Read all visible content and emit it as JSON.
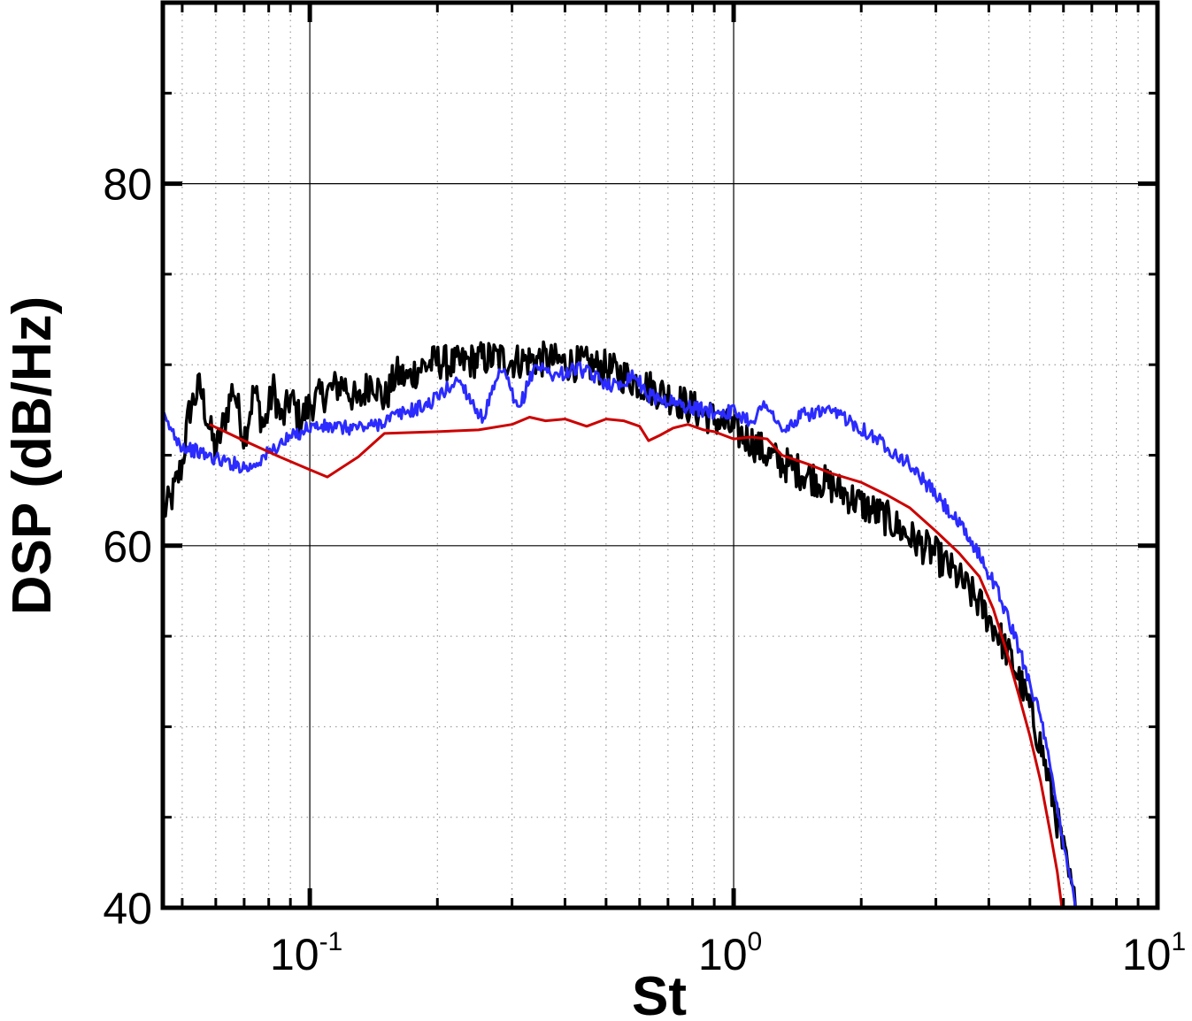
{
  "chart_data": {
    "type": "line",
    "title": "",
    "xlabel": "St",
    "ylabel": "DSP (dB/Hz)",
    "xscale": "log",
    "xlim": [
      0.045,
      10
    ],
    "ylim": [
      40,
      90
    ],
    "grid": true,
    "legend": "none",
    "x_ticks": [
      {
        "base": "10",
        "exp": "-1",
        "value": 0.1
      },
      {
        "base": "10",
        "exp": "0",
        "value": 1
      },
      {
        "base": "10",
        "exp": "1",
        "value": 10
      }
    ],
    "y_ticks": [
      {
        "label": "40",
        "value": 40
      },
      {
        "label": "60",
        "value": 60
      },
      {
        "label": "80",
        "value": 80
      }
    ],
    "series": [
      {
        "color": "#000000",
        "noise": 1.0,
        "x": [
          0.045,
          0.047,
          0.05,
          0.052,
          0.055,
          0.058,
          0.06,
          0.063,
          0.066,
          0.07,
          0.074,
          0.078,
          0.082,
          0.086,
          0.09,
          0.095,
          0.1,
          0.11,
          0.12,
          0.13,
          0.14,
          0.15,
          0.16,
          0.17,
          0.18,
          0.2,
          0.22,
          0.25,
          0.28,
          0.3,
          0.35,
          0.4,
          0.45,
          0.5,
          0.55,
          0.6,
          0.7,
          0.8,
          0.9,
          1.0,
          1.1,
          1.2,
          1.4,
          1.6,
          1.8,
          2.0,
          2.3,
          2.6,
          3.0,
          3.4,
          3.8,
          4.2,
          4.6,
          5.0,
          5.3,
          5.6,
          5.9,
          6.2,
          6.4
        ],
        "y": [
          61.8,
          62.5,
          64.5,
          67.5,
          68.8,
          66.5,
          65.2,
          67.0,
          68.8,
          66.0,
          68.6,
          66.5,
          68.7,
          66.8,
          68.2,
          66.9,
          67.8,
          68.5,
          69.0,
          67.8,
          69.3,
          68.0,
          69.5,
          69.2,
          69.8,
          70.2,
          70.0,
          70.3,
          70.4,
          70.2,
          70.3,
          70.1,
          70.0,
          69.8,
          69.4,
          69.0,
          68.3,
          67.6,
          67.0,
          66.4,
          65.8,
          65.0,
          64.2,
          63.6,
          63.0,
          62.3,
          61.5,
          60.5,
          59.5,
          58.2,
          56.8,
          55.2,
          53.3,
          51.0,
          49.0,
          46.5,
          44.0,
          41.5,
          40.0
        ]
      },
      {
        "color": "#2b2bff",
        "noise": 0.4,
        "x": [
          0.045,
          0.05,
          0.06,
          0.072,
          0.085,
          0.1,
          0.12,
          0.14,
          0.16,
          0.19,
          0.225,
          0.255,
          0.285,
          0.31,
          0.34,
          0.38,
          0.43,
          0.48,
          0.53,
          0.58,
          0.63,
          0.7,
          0.8,
          0.9,
          1.0,
          1.1,
          1.2,
          1.3,
          1.45,
          1.6,
          1.8,
          2.0,
          2.3,
          2.6,
          3.0,
          3.4,
          3.8,
          4.2,
          4.6,
          5.0,
          5.3,
          5.6,
          5.9,
          6.2,
          6.4
        ],
        "y": [
          67.1,
          65.5,
          64.8,
          64.3,
          65.6,
          66.6,
          66.5,
          66.6,
          67.2,
          67.8,
          69.2,
          67.0,
          69.8,
          67.4,
          70.0,
          69.4,
          69.8,
          69.2,
          68.8,
          69.5,
          68.3,
          68.0,
          67.6,
          67.4,
          67.4,
          66.9,
          67.9,
          66.2,
          67.2,
          67.4,
          67.2,
          66.5,
          65.5,
          64.5,
          62.8,
          61.2,
          59.5,
          57.5,
          55.0,
          52.5,
          50.5,
          47.5,
          44.5,
          42.0,
          40.0
        ]
      },
      {
        "color": "#cc0000",
        "noise": 0.0,
        "x": [
          0.058,
          0.07,
          0.085,
          0.1,
          0.11,
          0.13,
          0.15,
          0.2,
          0.25,
          0.3,
          0.33,
          0.36,
          0.4,
          0.45,
          0.5,
          0.55,
          0.6,
          0.63,
          0.67,
          0.72,
          0.78,
          0.85,
          0.9,
          1.0,
          1.1,
          1.2,
          1.3,
          1.5,
          1.7,
          2.0,
          2.3,
          2.6,
          3.0,
          3.4,
          3.8,
          4.1,
          4.4,
          4.7,
          5.0,
          5.3,
          5.6,
          5.8,
          5.95
        ],
        "y": [
          66.7,
          65.8,
          64.9,
          64.2,
          63.8,
          64.9,
          66.2,
          66.3,
          66.4,
          66.7,
          67.1,
          66.9,
          67.0,
          66.6,
          67.0,
          66.9,
          66.6,
          65.8,
          66.1,
          66.5,
          66.7,
          66.4,
          66.3,
          65.9,
          66.0,
          65.9,
          65.0,
          64.5,
          64.0,
          63.5,
          62.8,
          62.1,
          60.8,
          59.6,
          58.3,
          56.5,
          54.2,
          51.8,
          49.5,
          47.0,
          44.0,
          42.0,
          40.0
        ]
      }
    ]
  }
}
